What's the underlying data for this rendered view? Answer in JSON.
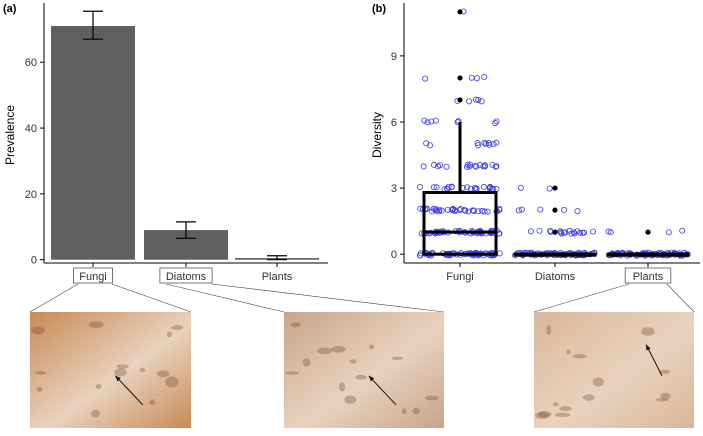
{
  "colors": {
    "bar_fill": "#5f5f5f",
    "point_outline": "#3a3ae6",
    "outlier": "#000000",
    "box_stroke": "#000000",
    "photo_bg": [
      "#c98a55",
      "#c7a58c",
      "#d9b79a"
    ]
  },
  "chart_data": [
    {
      "type": "bar",
      "panel_label": "(a)",
      "categories": [
        "Fungi",
        "Diatoms",
        "Plants"
      ],
      "values": [
        71,
        9,
        0.5
      ],
      "error_low": [
        67,
        6.5,
        0
      ],
      "error_high": [
        75.5,
        11.5,
        1.2
      ],
      "ylabel": "Prevalence",
      "xlabel": "",
      "yticks": [
        0,
        20,
        40,
        60
      ],
      "ylim": [
        -1,
        78
      ],
      "grid": false
    },
    {
      "type": "scatter",
      "panel_label": "(b)",
      "categories": [
        "Fungi",
        "Diatoms",
        "Plants"
      ],
      "ylabel": "Diversity",
      "xlabel": "",
      "yticks": [
        0,
        3,
        6,
        9
      ],
      "ylim": [
        -0.4,
        11.4
      ],
      "grid": false,
      "boxplot": [
        {
          "category": "Fungi",
          "q1": 0,
          "median": 1,
          "q3": 2.8,
          "whisker_high": 6,
          "whisker_low": 0
        },
        {
          "category": "Diatoms",
          "q1": 0,
          "median": 0,
          "q3": 0,
          "whisker_high": 0,
          "whisker_low": 0
        },
        {
          "category": "Plants",
          "q1": 0,
          "median": 0,
          "q3": 0,
          "whisker_high": 0,
          "whisker_low": 0
        }
      ],
      "outliers": [
        {
          "category": "Fungi",
          "y": 11
        },
        {
          "category": "Fungi",
          "y": 8
        },
        {
          "category": "Fungi",
          "y": 7
        },
        {
          "category": "Diatoms",
          "y": 3
        },
        {
          "category": "Diatoms",
          "y": 2
        },
        {
          "category": "Diatoms",
          "y": 1
        },
        {
          "category": "Plants",
          "y": 1
        }
      ],
      "points": [
        {
          "category": "Fungi",
          "counts": {
            "0": 60,
            "1": 45,
            "2": 35,
            "3": 22,
            "4": 18,
            "5": 10,
            "6": 8,
            "7": 5,
            "8": 4,
            "11": 1
          }
        },
        {
          "category": "Diatoms",
          "counts": {
            "0": 70,
            "1": 18,
            "2": 5,
            "3": 2
          }
        },
        {
          "category": "Plants",
          "counts": {
            "0": 70,
            "1": 4
          }
        }
      ]
    }
  ],
  "photos": [
    {
      "category": "Fungi"
    },
    {
      "category": "Diatoms"
    },
    {
      "category": "Plants"
    }
  ]
}
